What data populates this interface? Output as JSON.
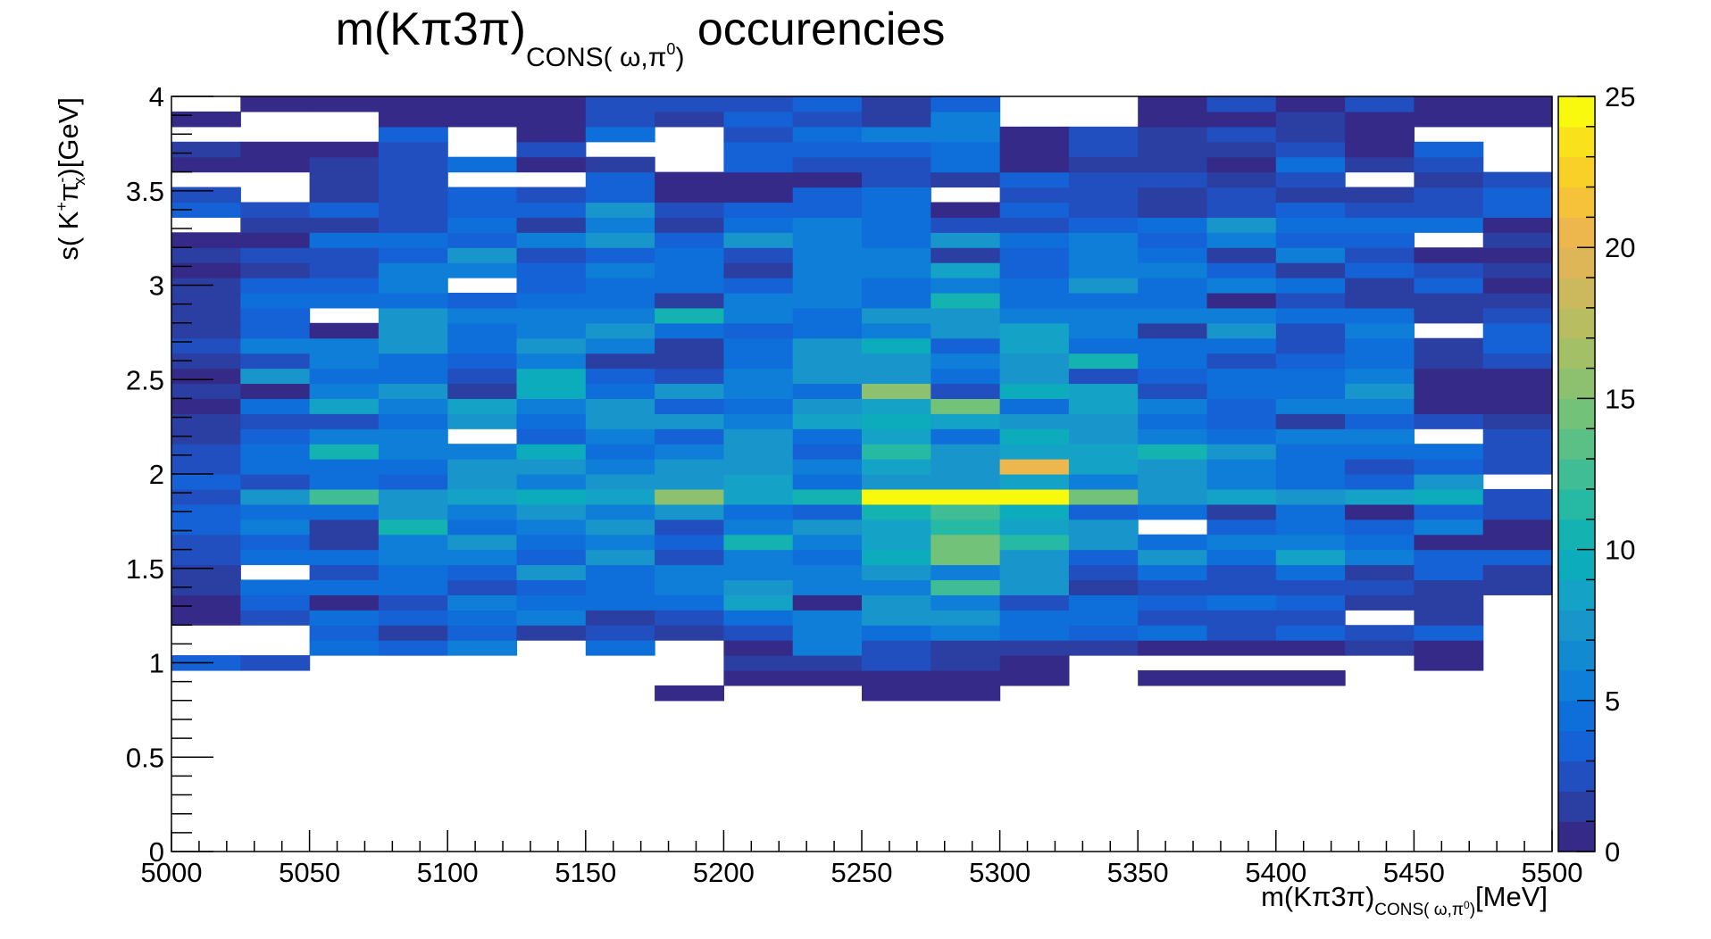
{
  "chart_data": {
    "type": "heatmap",
    "title": {
      "main": "m(Kπ3π)",
      "subscript": "CONS( ω,π",
      "subscript_sup": "0",
      "subscript_end": ")",
      "suffix": " occurencies"
    },
    "xlabel": {
      "main": "m(Kπ3π)",
      "subscript": "CONS( ω,π",
      "subscript_sup": "0",
      "subscript_end": ")",
      "unit": "[MeV]"
    },
    "ylabel": {
      "prefix": "s( K",
      "sup1": "+",
      "mid": "π",
      "sub": "x",
      "sup2": "-",
      "end": ")",
      "unit": "[GeV]"
    },
    "x_range": [
      5000,
      5500
    ],
    "y_range": [
      0,
      4
    ],
    "z_range": [
      0,
      25
    ],
    "x_bin_width": 25,
    "y_bin_width": 0.08,
    "x_ticks": [
      "5000",
      "5050",
      "5100",
      "5150",
      "5200",
      "5250",
      "5300",
      "5350",
      "5400",
      "5450",
      "5500"
    ],
    "y_ticks": [
      "0",
      "0.5",
      "1",
      "1.5",
      "2",
      "2.5",
      "3",
      "3.5",
      "4"
    ],
    "z_ticks": [
      "0",
      "5",
      "10",
      "15",
      "20",
      "25"
    ],
    "palette": [
      "#352a87",
      "#2b3ea2",
      "#214fc0",
      "#1561d6",
      "#0f6fda",
      "#0f7ed8",
      "#128ad2",
      "#1896cc",
      "#14a2c6",
      "#0dacbd",
      "#14b3b1",
      "#26b9a3",
      "#40bd94",
      "#5ac085",
      "#73c279",
      "#8dc170",
      "#a4c067",
      "#b8bd61",
      "#cdb95d",
      "#dfb657",
      "#eeb74d",
      "#f6c23a",
      "#f8d028",
      "#f9e21b",
      "#f9f90e"
    ],
    "grid": "off",
    "colorbar": "right",
    "rows": [
      {
        "y0": 0.8,
        "values": {
          "5175": 1,
          "5250": 1,
          "5275": 1
        }
      },
      {
        "y0": 0.88,
        "values": {
          "5200": 1,
          "5225": 1,
          "5250": 1,
          "5275": 1,
          "5300": 1,
          "5350": 1,
          "5375": 1,
          "5400": 1
        }
      },
      {
        "y0": 0.96,
        "values": {
          "5000": 4,
          "5025": 3,
          "5200": 2,
          "5225": 2,
          "5250": 3,
          "5275": 2,
          "5300": 1,
          "5450": 1
        }
      },
      {
        "y0": 1.04,
        "values": {
          "5050": 5,
          "5075": 4,
          "5100": 6,
          "5150": 5,
          "5200": 1,
          "5225": 6,
          "5250": 3,
          "5275": 2,
          "5300": 2,
          "5325": 2,
          "5350": 1,
          "5375": 1,
          "5400": 1,
          "5425": 2,
          "5450": 1
        }
      },
      {
        "y0": 1.12,
        "values": {
          "5050": 4,
          "5075": 2,
          "5100": 4,
          "5125": 2,
          "5150": 3,
          "5175": 2,
          "5200": 3,
          "5225": 6,
          "5250": 5,
          "5275": 6,
          "5300": 5,
          "5325": 4,
          "5350": 5,
          "5375": 3,
          "5400": 4,
          "5425": 3,
          "5450": 4
        }
      },
      {
        "y0": 1.2,
        "values": {
          "5000": 1,
          "5025": 3,
          "5050": 5,
          "5075": 4,
          "5100": 5,
          "5125": 6,
          "5150": 2,
          "5175": 3,
          "5200": 5,
          "5225": 6,
          "5250": 7,
          "5275": 7,
          "5300": 5,
          "5325": 5,
          "5350": 3,
          "5375": 3,
          "5400": 3,
          "5450": 2
        }
      },
      {
        "y0": 1.28,
        "values": {
          "5000": 1,
          "5025": 4,
          "5050": 1,
          "5075": 3,
          "5100": 6,
          "5125": 5,
          "5150": 5,
          "5175": 5,
          "5200": 9,
          "5225": 1,
          "5250": 7,
          "5275": 6,
          "5300": 3,
          "5325": 5,
          "5350": 4,
          "5375": 5,
          "5400": 4,
          "5425": 2,
          "5450": 2
        }
      },
      {
        "y0": 1.36,
        "values": {
          "5000": 2,
          "5025": 5,
          "5050": 5,
          "5075": 5,
          "5100": 3,
          "5125": 4,
          "5150": 5,
          "5175": 6,
          "5200": 7,
          "5225": 6,
          "5250": 6,
          "5275": 13,
          "5300": 7,
          "5325": 2,
          "5350": 3,
          "5375": 3,
          "5400": 3,
          "5425": 3,
          "5450": 2,
          "5475": 2
        }
      },
      {
        "y0": 1.44,
        "values": {
          "5000": 2,
          "5050": 3,
          "5075": 5,
          "5100": 4,
          "5125": 7,
          "5150": 5,
          "5175": 6,
          "5200": 6,
          "5225": 6,
          "5250": 7,
          "5275": 6,
          "5300": 8,
          "5325": 3,
          "5350": 5,
          "5375": 3,
          "5400": 5,
          "5425": 2,
          "5450": 4,
          "5475": 2
        }
      },
      {
        "y0": 1.52,
        "values": {
          "5000": 3,
          "5025": 5,
          "5050": 5,
          "5075": 6,
          "5100": 6,
          "5125": 4,
          "5150": 8,
          "5175": 3,
          "5200": 6,
          "5225": 5,
          "5250": 10,
          "5275": 14,
          "5300": 7,
          "5325": 4,
          "5350": 7,
          "5375": 5,
          "5400": 9,
          "5425": 6,
          "5450": 4,
          "5475": 4
        }
      },
      {
        "y0": 1.6,
        "values": {
          "5000": 3,
          "5025": 4,
          "5050": 2,
          "5075": 6,
          "5100": 7,
          "5125": 5,
          "5150": 6,
          "5175": 4,
          "5200": 11,
          "5225": 6,
          "5250": 9,
          "5275": 14,
          "5300": 12,
          "5325": 7,
          "5350": 5,
          "5375": 6,
          "5400": 6,
          "5425": 5,
          "5450": 1,
          "5475": 1
        }
      },
      {
        "y0": 1.68,
        "values": {
          "5000": 4,
          "5025": 6,
          "5050": 2,
          "5075": 11,
          "5100": 5,
          "5125": 6,
          "5150": 7,
          "5175": 3,
          "5200": 6,
          "5225": 7,
          "5250": 9,
          "5275": 12,
          "5300": 9,
          "5325": 7,
          "5375": 4,
          "5400": 5,
          "5425": 4,
          "5450": 6,
          "5475": 1
        }
      },
      {
        "y0": 1.76,
        "values": {
          "5000": 4,
          "5025": 5,
          "5050": 5,
          "5075": 7,
          "5100": 6,
          "5125": 8,
          "5150": 6,
          "5175": 7,
          "5200": 5,
          "5225": 4,
          "5250": 11,
          "5275": 13,
          "5300": 10,
          "5325": 4,
          "5350": 5,
          "5375": 2,
          "5400": 5,
          "5425": 1,
          "5450": 4,
          "5475": 3,
          "5500": 3
        }
      },
      {
        "y0": 1.84,
        "values": {
          "5000": 3,
          "5025": 7,
          "5050": 13,
          "5075": 8,
          "5100": 9,
          "5125": 10,
          "5150": 9,
          "5175": 16,
          "5200": 9,
          "5225": 11,
          "5250": 25,
          "5275": 25,
          "5300": 25,
          "5325": 14,
          "5350": 7,
          "5375": 9,
          "5400": 8,
          "5425": 9,
          "5450": 10,
          "5475": 3,
          "5500": 7
        }
      },
      {
        "y0": 1.92,
        "values": {
          "5000": 4,
          "5025": 3,
          "5050": 5,
          "5075": 4,
          "5100": 8,
          "5125": 6,
          "5150": 7,
          "5175": 8,
          "5200": 9,
          "5225": 5,
          "5250": 7,
          "5275": 8,
          "5300": 9,
          "5325": 6,
          "5350": 7,
          "5375": 6,
          "5400": 5,
          "5425": 4,
          "5450": 7,
          "5500": 5
        }
      },
      {
        "y0": 2.0,
        "values": {
          "5000": 3,
          "5025": 5,
          "5050": 5,
          "5075": 5,
          "5100": 7,
          "5125": 7,
          "5150": 6,
          "5175": 8,
          "5200": 8,
          "5225": 6,
          "5250": 9,
          "5275": 8,
          "5300": 21,
          "5325": 9,
          "5350": 7,
          "5375": 6,
          "5400": 5,
          "5425": 3,
          "5450": 4,
          "5475": 3,
          "5500": 8
        }
      },
      {
        "y0": 2.08,
        "values": {
          "5000": 3,
          "5025": 5,
          "5050": 11,
          "5075": 6,
          "5100": 6,
          "5125": 10,
          "5150": 5,
          "5175": 6,
          "5200": 8,
          "5225": 4,
          "5250": 12,
          "5275": 7,
          "5300": 9,
          "5325": 9,
          "5350": 11,
          "5375": 7,
          "5400": 5,
          "5425": 5,
          "5450": 5,
          "5475": 3,
          "5500": 2
        }
      },
      {
        "y0": 2.16,
        "values": {
          "5000": 2,
          "5025": 4,
          "5050": 6,
          "5075": 6,
          "5125": 4,
          "5150": 6,
          "5175": 4,
          "5200": 7,
          "5225": 5,
          "5250": 9,
          "5275": 5,
          "5300": 10,
          "5325": 8,
          "5350": 6,
          "5375": 5,
          "5400": 6,
          "5425": 6,
          "5475": 3,
          "5500": 3
        }
      },
      {
        "y0": 2.24,
        "values": {
          "5000": 2,
          "5025": 3,
          "5050": 3,
          "5075": 5,
          "5100": 7,
          "5125": 5,
          "5150": 8,
          "5175": 7,
          "5200": 6,
          "5225": 9,
          "5250": 10,
          "5275": 9,
          "5300": 7,
          "5325": 7,
          "5350": 5,
          "5375": 4,
          "5400": 2,
          "5425": 4,
          "5450": 3,
          "5475": 2,
          "5500": 4
        }
      },
      {
        "y0": 2.32,
        "values": {
          "5000": 1,
          "5025": 5,
          "5050": 9,
          "5075": 6,
          "5100": 9,
          "5125": 6,
          "5150": 7,
          "5175": 4,
          "5200": 5,
          "5225": 7,
          "5250": 9,
          "5275": 15,
          "5300": 5,
          "5325": 9,
          "5350": 6,
          "5375": 4,
          "5400": 6,
          "5425": 6,
          "5450": 1,
          "5475": 1,
          "5500": 2
        }
      },
      {
        "y0": 2.4,
        "values": {
          "5000": 2,
          "5025": 1,
          "5050": 6,
          "5075": 7,
          "5100": 2,
          "5125": 10,
          "5150": 5,
          "5175": 7,
          "5200": 6,
          "5225": 5,
          "5250": 16,
          "5275": 3,
          "5300": 10,
          "5325": 9,
          "5350": 3,
          "5375": 5,
          "5400": 5,
          "5425": 7,
          "5450": 1,
          "5475": 1,
          "5500": 1
        }
      },
      {
        "y0": 2.48,
        "values": {
          "5000": 1,
          "5025": 7,
          "5050": 5,
          "5075": 5,
          "5100": 3,
          "5125": 10,
          "5150": 4,
          "5175": 3,
          "5200": 6,
          "5225": 8,
          "5250": 8,
          "5275": 5,
          "5300": 8,
          "5325": 3,
          "5350": 4,
          "5375": 5,
          "5400": 5,
          "5425": 6,
          "5450": 1,
          "5475": 1,
          "5500": 1
        }
      },
      {
        "y0": 2.56,
        "values": {
          "5000": 2,
          "5025": 3,
          "5050": 6,
          "5075": 5,
          "5100": 4,
          "5125": 6,
          "5150": 2,
          "5175": 2,
          "5200": 5,
          "5225": 7,
          "5250": 8,
          "5275": 6,
          "5300": 8,
          "5325": 11,
          "5350": 5,
          "5375": 3,
          "5400": 4,
          "5425": 5,
          "5450": 2,
          "5475": 3,
          "5500": 3
        }
      },
      {
        "y0": 2.64,
        "values": {
          "5000": 3,
          "5025": 6,
          "5050": 6,
          "5075": 8,
          "5100": 5,
          "5125": 7,
          "5150": 6,
          "5175": 2,
          "5200": 5,
          "5225": 8,
          "5250": 10,
          "5275": 4,
          "5300": 9,
          "5325": 5,
          "5350": 5,
          "5375": 5,
          "5400": 3,
          "5425": 5,
          "5450": 2,
          "5475": 4,
          "5500": 3
        }
      },
      {
        "y0": 2.72,
        "values": {
          "5000": 2,
          "5025": 4,
          "5050": 1,
          "5075": 7,
          "5100": 5,
          "5125": 6,
          "5150": 7,
          "5175": 5,
          "5200": 4,
          "5225": 5,
          "5250": 6,
          "5275": 7,
          "5300": 9,
          "5325": 6,
          "5350": 2,
          "5375": 7,
          "5400": 3,
          "5425": 6,
          "5475": 4,
          "5500": 1
        }
      },
      {
        "y0": 2.8,
        "values": {
          "5000": 2,
          "5025": 4,
          "5075": 7,
          "5100": 6,
          "5125": 6,
          "5150": 6,
          "5175": 11,
          "5200": 6,
          "5225": 5,
          "5250": 7,
          "5275": 8,
          "5300": 6,
          "5325": 6,
          "5350": 6,
          "5375": 6,
          "5400": 5,
          "5425": 5,
          "5450": 2,
          "5475": 3,
          "5500": 1
        }
      },
      {
        "y0": 2.88,
        "values": {
          "5000": 2,
          "5025": 5,
          "5050": 5,
          "5075": 5,
          "5100": 4,
          "5125": 5,
          "5150": 5,
          "5175": 2,
          "5200": 6,
          "5225": 6,
          "5250": 5,
          "5275": 11,
          "5300": 5,
          "5325": 5,
          "5350": 5,
          "5375": 1,
          "5400": 3,
          "5425": 2,
          "5450": 2,
          "5475": 2
        }
      },
      {
        "y0": 2.96,
        "values": {
          "5000": 2,
          "5025": 4,
          "5050": 4,
          "5075": 6,
          "5125": 4,
          "5150": 5,
          "5175": 5,
          "5200": 4,
          "5225": 6,
          "5250": 5,
          "5275": 6,
          "5300": 5,
          "5325": 7,
          "5350": 5,
          "5375": 6,
          "5400": 5,
          "5425": 2,
          "5450": 4,
          "5475": 1,
          "5500": 4
        }
      },
      {
        "y0": 3.04,
        "values": {
          "5000": 1,
          "5025": 2,
          "5050": 3,
          "5075": 6,
          "5100": 6,
          "5125": 4,
          "5150": 6,
          "5175": 5,
          "5200": 2,
          "5225": 6,
          "5250": 6,
          "5275": 9,
          "5300": 4,
          "5325": 6,
          "5350": 6,
          "5375": 4,
          "5400": 2,
          "5425": 4,
          "5450": 3,
          "5475": 2
        }
      },
      {
        "y0": 3.12,
        "values": {
          "5000": 2,
          "5025": 3,
          "5050": 3,
          "5075": 4,
          "5100": 8,
          "5125": 3,
          "5150": 4,
          "5175": 5,
          "5200": 3,
          "5225": 6,
          "5250": 6,
          "5275": 2,
          "5300": 4,
          "5325": 6,
          "5350": 5,
          "5375": 2,
          "5400": 6,
          "5425": 3,
          "5450": 1,
          "5475": 1
        }
      },
      {
        "y0": 3.2,
        "values": {
          "5000": 1,
          "5025": 1,
          "5050": 5,
          "5075": 5,
          "5100": 4,
          "5125": 6,
          "5150": 7,
          "5175": 4,
          "5200": 8,
          "5225": 6,
          "5250": 5,
          "5275": 7,
          "5300": 5,
          "5325": 6,
          "5350": 4,
          "5375": 6,
          "5400": 4,
          "5425": 4,
          "5475": 2
        }
      },
      {
        "y0": 3.28,
        "values": {
          "5025": 2,
          "5050": 2,
          "5075": 3,
          "5100": 5,
          "5125": 2,
          "5150": 6,
          "5175": 2,
          "5200": 5,
          "5225": 6,
          "5250": 5,
          "5275": 3,
          "5300": 3,
          "5325": 4,
          "5350": 5,
          "5375": 7,
          "5400": 5,
          "5425": 5,
          "5450": 5,
          "5475": 1
        }
      },
      {
        "y0": 3.36,
        "values": {
          "5000": 4,
          "5025": 3,
          "5050": 4,
          "5075": 3,
          "5100": 4,
          "5125": 4,
          "5150": 7,
          "5175": 3,
          "5200": 4,
          "5225": 4,
          "5250": 5,
          "5275": 1,
          "5300": 4,
          "5325": 3,
          "5350": 2,
          "5375": 3,
          "5400": 4,
          "5425": 3,
          "5450": 3,
          "5475": 4,
          "5500": 1
        }
      },
      {
        "y0": 3.44,
        "values": {
          "5000": 3,
          "5050": 2,
          "5075": 3,
          "5100": 4,
          "5125": 3,
          "5150": 4,
          "5175": 1,
          "5200": 1,
          "5225": 4,
          "5250": 5,
          "5300": 3,
          "5325": 3,
          "5350": 2,
          "5375": 3,
          "5400": 2,
          "5425": 2,
          "5450": 3,
          "5475": 4
        }
      },
      {
        "y0": 3.52,
        "values": {
          "5050": 2,
          "5075": 3,
          "5150": 4,
          "5175": 1,
          "5200": 1,
          "5225": 1,
          "5250": 3,
          "5275": 2,
          "5300": 4,
          "5325": 3,
          "5350": 3,
          "5375": 2,
          "5400": 3,
          "5450": 2,
          "5475": 3
        }
      },
      {
        "y0": 3.6,
        "values": {
          "5000": 1,
          "5025": 1,
          "5050": 2,
          "5075": 3,
          "5100": 5,
          "5125": 1,
          "5150": 2,
          "5200": 4,
          "5225": 3,
          "5250": 3,
          "5275": 5,
          "5300": 1,
          "5325": 2,
          "5350": 2,
          "5375": 1,
          "5400": 5,
          "5425": 2,
          "5450": 3
        }
      },
      {
        "y0": 3.68,
        "values": {
          "5000": 2,
          "5025": 1,
          "5050": 1,
          "5075": 3,
          "5125": 3,
          "5200": 4,
          "5225": 4,
          "5250": 4,
          "5275": 5,
          "5300": 1,
          "5325": 3,
          "5350": 2,
          "5375": 2,
          "5400": 3,
          "5425": 1,
          "5450": 4
        }
      },
      {
        "y0": 3.76,
        "values": {
          "5075": 4,
          "5125": 1,
          "5150": 5,
          "5200": 3,
          "5225": 5,
          "5250": 6,
          "5275": 6,
          "5300": 1,
          "5325": 3,
          "5350": 2,
          "5375": 3,
          "5400": 2,
          "5425": 1
        }
      },
      {
        "y0": 3.84,
        "values": {
          "5000": 1,
          "5075": 1,
          "5100": 1,
          "5125": 1,
          "5150": 3,
          "5175": 2,
          "5200": 4,
          "5225": 3,
          "5250": 2,
          "5275": 6,
          "5350": 1,
          "5375": 1,
          "5400": 2,
          "5425": 1,
          "5450": 1,
          "5475": 1
        }
      },
      {
        "y0": 3.92,
        "values": {
          "5025": 1,
          "5050": 1,
          "5075": 1,
          "5100": 1,
          "5125": 1,
          "5150": 3,
          "5175": 3,
          "5200": 3,
          "5225": 4,
          "5250": 2,
          "5275": 4,
          "5350": 1,
          "5375": 3,
          "5400": 1,
          "5425": 3,
          "5450": 1,
          "5475": 1
        }
      }
    ]
  }
}
